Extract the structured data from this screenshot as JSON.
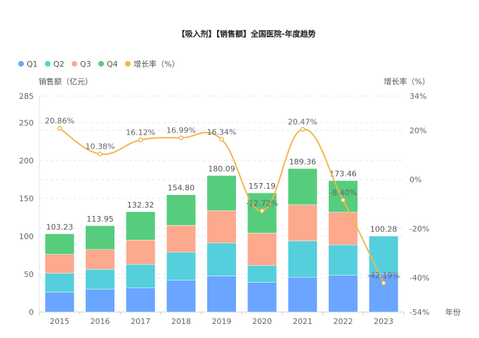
{
  "chart_data": {
    "type": "bar",
    "title": "【吸入剂】【销售额】全国医院-年度趋势",
    "xlabel": "年份",
    "ylabel": "销售额（亿元）",
    "y2label": "增长率（%）",
    "categories": [
      "2015",
      "2016",
      "2017",
      "2018",
      "2019",
      "2020",
      "2021",
      "2022",
      "2023"
    ],
    "ylim": [
      0,
      285
    ],
    "yticks": [
      0,
      50,
      100,
      150,
      200,
      250,
      285
    ],
    "y2lim": [
      -54,
      34
    ],
    "y2ticks": [
      -54,
      -40,
      -20,
      0,
      20,
      34
    ],
    "y2tick_suffix": "%",
    "grid": true,
    "legend_position": "top-left",
    "series": [
      {
        "name": "Q1",
        "type": "bar",
        "stack": "total",
        "color": "#6aa5ff",
        "values": [
          26.2,
          29.9,
          31.7,
          41.9,
          47.5,
          39.1,
          46.0,
          48.4,
          50.6
        ]
      },
      {
        "name": "Q2",
        "type": "bar",
        "stack": "total",
        "color": "#55cfdc",
        "values": [
          25.0,
          26.5,
          31.2,
          37.0,
          43.5,
          22.2,
          47.8,
          40.2,
          49.68
        ]
      },
      {
        "name": "Q3",
        "type": "bar",
        "stack": "total",
        "color": "#fca98e",
        "values": [
          25.0,
          26.2,
          32.1,
          35.5,
          42.9,
          42.9,
          47.8,
          43.1,
          null
        ]
      },
      {
        "name": "Q4",
        "type": "bar",
        "stack": "total",
        "color": "#56cd7c",
        "values": [
          27.03,
          31.35,
          37.32,
          40.4,
          46.19,
          52.99,
          47.76,
          41.76,
          null
        ]
      },
      {
        "name": "增长率（%）",
        "type": "line",
        "axis": "right",
        "color": "#f0b64f",
        "smooth": true,
        "values": [
          20.86,
          10.38,
          16.12,
          16.99,
          16.34,
          -12.72,
          20.47,
          -8.4,
          -42.19
        ],
        "labels": [
          "20.86%",
          "10.38%",
          "16.12%",
          "16.99%",
          "16.34%",
          "-12.72%",
          "20.47%",
          "-8.40%",
          "-42.19%"
        ]
      }
    ],
    "totals": [
      103.23,
      113.95,
      132.32,
      154.8,
      180.09,
      157.19,
      189.36,
      173.46,
      100.28
    ],
    "total_labels": [
      "103.23",
      "113.95",
      "132.32",
      "154.80",
      "180.09",
      "157.19",
      "189.36",
      "173.46",
      "100.28"
    ]
  }
}
